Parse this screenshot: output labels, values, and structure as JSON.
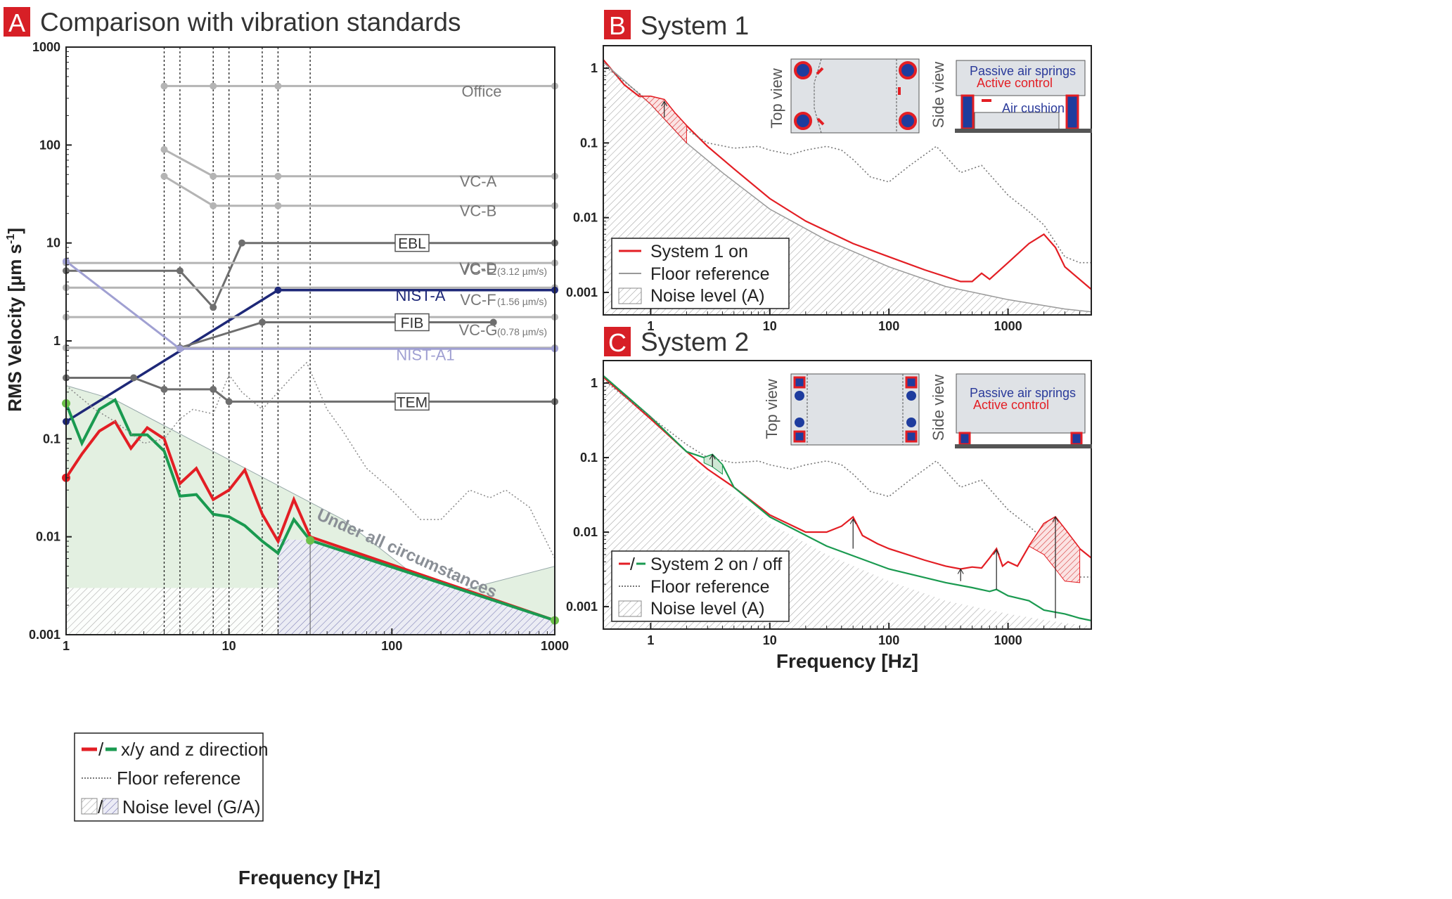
{
  "chart_data": [
    {
      "panel_letter": "A",
      "title": "Comparison with vibration standards",
      "type": "line",
      "xlabel": "Frequency [Hz]",
      "ylabel": "RMS Velocity [µm s",
      "ylabel_sup": "-1",
      "ylabel_close": "]",
      "xscale": "log",
      "yscale": "log",
      "xlim": [
        1,
        1000
      ],
      "ylim": [
        0.001,
        1000
      ],
      "xticks": [
        "1",
        "10",
        "100",
        "1000"
      ],
      "yticks": [
        "1000",
        "100",
        "10",
        "1",
        "0.1",
        "0.01",
        "0.001"
      ],
      "vlines": [
        4,
        5,
        8,
        10,
        16,
        20,
        31.5
      ],
      "standards": [
        {
          "name": "Office",
          "label": "Office",
          "color": "#b4b4b4",
          "x": [
            4,
            8,
            20,
            1000
          ],
          "y": [
            400,
            400,
            400,
            400
          ]
        },
        {
          "name": "VC-A",
          "label": "VC-A",
          "color": "#b4b4b4",
          "x": [
            4,
            8,
            20,
            1000
          ],
          "y": [
            90,
            48,
            48,
            48
          ]
        },
        {
          "name": "VC-B",
          "label": "VC-B",
          "color": "#b4b4b4",
          "x": [
            4,
            8,
            20,
            1000
          ],
          "y": [
            48,
            24,
            24,
            24
          ]
        },
        {
          "name": "EBL",
          "label": "EBL",
          "color": "#6e6e6e",
          "boxed": true,
          "x": [
            1,
            5,
            8,
            12,
            1000
          ],
          "y": [
            5.2,
            5.2,
            2.2,
            10,
            10
          ]
        },
        {
          "name": "VC-D",
          "label": "VC-D",
          "color": "#b4b4b4",
          "x": [
            1,
            1000
          ],
          "y": [
            6.25,
            6.25
          ]
        },
        {
          "name": "VC-E",
          "label": "VC-E",
          "color": "#b4b4b4",
          "x": [
            1,
            1000
          ],
          "y": [
            3.5,
            3.5
          ]
        },
        {
          "name": "NIST-A",
          "label": "NIST-A",
          "color": "#1e2878",
          "x": [
            1,
            20,
            1000
          ],
          "y": [
            0.15,
            3.3,
            3.3
          ]
        },
        {
          "name": "VC-F",
          "label": "VC-F",
          "color": "#b4b4b4",
          "x": [
            1,
            1000
          ],
          "y": [
            1.75,
            1.75
          ]
        },
        {
          "name": "FIB",
          "label": "FIB",
          "color": "#6e6e6e",
          "boxed": true,
          "x": [
            1,
            5,
            16,
            420
          ],
          "y": [
            0.85,
            0.85,
            1.55,
            1.55
          ]
        },
        {
          "name": "VC-G",
          "label": "VC-G",
          "color": "#b4b4b4",
          "x": [
            1,
            1000
          ],
          "y": [
            0.85,
            0.85
          ]
        },
        {
          "name": "NIST-A1",
          "label": "NIST-A1",
          "color": "#a0a0d2",
          "x": [
            1,
            5,
            1000
          ],
          "y": [
            6.5,
            0.83,
            0.83
          ]
        },
        {
          "name": "TEM",
          "label": "TEM",
          "color": "#6e6e6e",
          "boxed": true,
          "x": [
            1,
            2.6,
            4,
            8,
            10,
            1000
          ],
          "y": [
            0.42,
            0.42,
            0.32,
            0.32,
            0.24,
            0.24
          ]
        }
      ],
      "standard_notes": {
        "VC-E": "(3.12 µm/s)",
        "VC-F": "(1.56 µm/s)",
        "VC-G": "(0.78 µm/s)"
      },
      "series": [
        {
          "name": "x/y direction",
          "color": "#e31e24",
          "x": [
            1,
            1.25,
            1.6,
            2,
            2.5,
            3.15,
            4,
            5,
            6.3,
            8,
            10,
            12.5,
            16,
            20,
            25,
            31.5,
            1000
          ],
          "y": [
            0.04,
            0.07,
            0.12,
            0.15,
            0.08,
            0.13,
            0.1,
            0.035,
            0.05,
            0.024,
            0.03,
            0.048,
            0.017,
            0.009,
            0.024,
            0.01,
            0.0014
          ]
        },
        {
          "name": "z direction",
          "color": "#1a9a50",
          "x": [
            1,
            1.25,
            1.6,
            2,
            2.5,
            3.15,
            4,
            5,
            6.3,
            8,
            10,
            12.5,
            16,
            20,
            25,
            31.5,
            1000
          ],
          "y": [
            0.23,
            0.09,
            0.2,
            0.25,
            0.11,
            0.11,
            0.075,
            0.026,
            0.027,
            0.017,
            0.016,
            0.013,
            0.009,
            0.0068,
            0.015,
            0.0092,
            0.0014
          ]
        },
        {
          "name": "Floor reference",
          "color": "#8a8a8a",
          "x": [
            1,
            1.5,
            2,
            3,
            4,
            5,
            6,
            8,
            10,
            12,
            16,
            20,
            25,
            30,
            40,
            50,
            70,
            100,
            150,
            200,
            300,
            400,
            500,
            700,
            1000
          ],
          "y": [
            0.35,
            0.2,
            0.15,
            0.09,
            0.1,
            0.16,
            0.2,
            0.18,
            0.45,
            0.3,
            0.2,
            0.3,
            0.45,
            0.6,
            0.2,
            0.12,
            0.05,
            0.03,
            0.015,
            0.015,
            0.03,
            0.025,
            0.03,
            0.02,
            0.006
          ]
        }
      ],
      "shaded_region_label": "Under all circumstances",
      "legend": [
        "x/y and z direction",
        "Floor reference",
        "Noise level (G/A)"
      ],
      "legend_placement": "bottom-left"
    },
    {
      "panel_letter": "B",
      "title": "System 1",
      "type": "line",
      "xlabel": "",
      "xscale": "log",
      "yscale": "log",
      "xlim": [
        0.4,
        5000
      ],
      "ylim": [
        0.0005,
        2
      ],
      "xticks": [
        "1",
        "10",
        "100",
        "1000"
      ],
      "yticks": [
        "1",
        "0.1",
        "0.01",
        "0.001"
      ],
      "series": [
        {
          "name": "System 1 on",
          "color": "#e31e24",
          "x": [
            0.4,
            0.6,
            0.8,
            1,
            1.3,
            1.6,
            2,
            3,
            5,
            10,
            20,
            50,
            100,
            200,
            400,
            500,
            600,
            700,
            1000,
            1500,
            2000,
            2500,
            3000,
            5000
          ],
          "y": [
            1.3,
            0.6,
            0.42,
            0.42,
            0.38,
            0.25,
            0.17,
            0.09,
            0.045,
            0.018,
            0.009,
            0.0045,
            0.003,
            0.002,
            0.0014,
            0.0014,
            0.0018,
            0.0015,
            0.0025,
            0.0045,
            0.006,
            0.004,
            0.0022,
            0.0011
          ]
        },
        {
          "name": "Floor reference",
          "color": "#9a9a9a",
          "x": [
            0.4,
            1,
            2,
            4,
            10,
            30,
            100,
            300,
            1000,
            3000,
            5000
          ],
          "y": [
            1.2,
            0.33,
            0.1,
            0.04,
            0.013,
            0.005,
            0.0022,
            0.0012,
            0.0008,
            0.0006,
            0.00055
          ]
        },
        {
          "name": "Floor reference (dotted)",
          "color": "#777777",
          "x": [
            0.4,
            1,
            2,
            3,
            5,
            8,
            10,
            15,
            20,
            30,
            40,
            50,
            70,
            100,
            150,
            250,
            400,
            600,
            1000,
            1500,
            2000,
            3000,
            4000,
            5000
          ],
          "y": [
            1.1,
            0.35,
            0.15,
            0.1,
            0.085,
            0.09,
            0.08,
            0.07,
            0.08,
            0.09,
            0.08,
            0.06,
            0.035,
            0.03,
            0.05,
            0.09,
            0.04,
            0.05,
            0.02,
            0.012,
            0.008,
            0.003,
            0.0025,
            0.0025
          ]
        }
      ],
      "inset_labels": {
        "top_view": "Top view",
        "side_view": "Side view",
        "passive": "Passive air springs",
        "active": "Active control",
        "cushion": "Air cushion"
      },
      "legend": [
        "System 1 on",
        "Floor reference",
        "Noise level (A)"
      ],
      "legend_placement": "bottom-left"
    },
    {
      "panel_letter": "C",
      "title": "System 2",
      "type": "line",
      "xlabel": "Frequency [Hz]",
      "xscale": "log",
      "yscale": "log",
      "xlim": [
        0.4,
        5000
      ],
      "ylim": [
        0.0005,
        2
      ],
      "xticks": [
        "1",
        "10",
        "100",
        "1000"
      ],
      "yticks": [
        "1",
        "0.1",
        "0.01",
        "0.001"
      ],
      "series": [
        {
          "name": "System 2 on",
          "color": "#e31e24",
          "x": [
            0.4,
            1,
            2,
            3,
            5,
            10,
            20,
            30,
            40,
            50,
            60,
            80,
            100,
            200,
            300,
            400,
            500,
            600,
            700,
            800,
            900,
            1000,
            1200,
            1500,
            2000,
            2500,
            3000,
            4000,
            5000
          ],
          "y": [
            1.2,
            0.33,
            0.12,
            0.07,
            0.04,
            0.017,
            0.01,
            0.01,
            0.012,
            0.016,
            0.009,
            0.007,
            0.006,
            0.0042,
            0.0035,
            0.0032,
            0.0034,
            0.0033,
            0.0045,
            0.006,
            0.0035,
            0.004,
            0.0035,
            0.0065,
            0.013,
            0.016,
            0.011,
            0.006,
            0.0045
          ]
        },
        {
          "name": "System 2 off",
          "color": "#1a9a50",
          "x": [
            0.4,
            1,
            2,
            2.8,
            3.3,
            4,
            5,
            10,
            30,
            100,
            300,
            500,
            700,
            800,
            1000,
            1500,
            2000,
            3000,
            4000,
            5000
          ],
          "y": [
            1.25,
            0.35,
            0.12,
            0.1,
            0.11,
            0.08,
            0.04,
            0.016,
            0.0065,
            0.0032,
            0.0021,
            0.0018,
            0.0016,
            0.0017,
            0.0014,
            0.0012,
            0.0009,
            0.0008,
            0.0007,
            0.00065
          ]
        },
        {
          "name": "Floor reference",
          "color": "#777777",
          "x": [
            0.4,
            1,
            2,
            3,
            5,
            8,
            10,
            15,
            20,
            30,
            40,
            50,
            70,
            100,
            150,
            250,
            400,
            600,
            1000,
            1500,
            2000,
            3000,
            4000,
            5000
          ],
          "y": [
            1.1,
            0.35,
            0.15,
            0.1,
            0.085,
            0.09,
            0.08,
            0.07,
            0.08,
            0.09,
            0.08,
            0.06,
            0.035,
            0.03,
            0.05,
            0.09,
            0.04,
            0.05,
            0.02,
            0.012,
            0.008,
            0.003,
            0.0025,
            0.0025
          ]
        }
      ],
      "inset_labels": {
        "top_view": "Top view",
        "side_view": "Side view",
        "passive": "Passive air springs",
        "active": "Active control"
      },
      "legend": [
        "System 2 on / off",
        "Floor reference",
        "Noise level (A)"
      ],
      "legend_placement": "bottom-left"
    }
  ],
  "colors": {
    "red": "#e31e24",
    "green": "#1a9a50",
    "navy": "#1e2878",
    "lavender": "#a0a0d2",
    "light_grey": "#b4b4b4",
    "dark_grey": "#6e6e6e",
    "panel_label_bg": "#d71f26"
  }
}
